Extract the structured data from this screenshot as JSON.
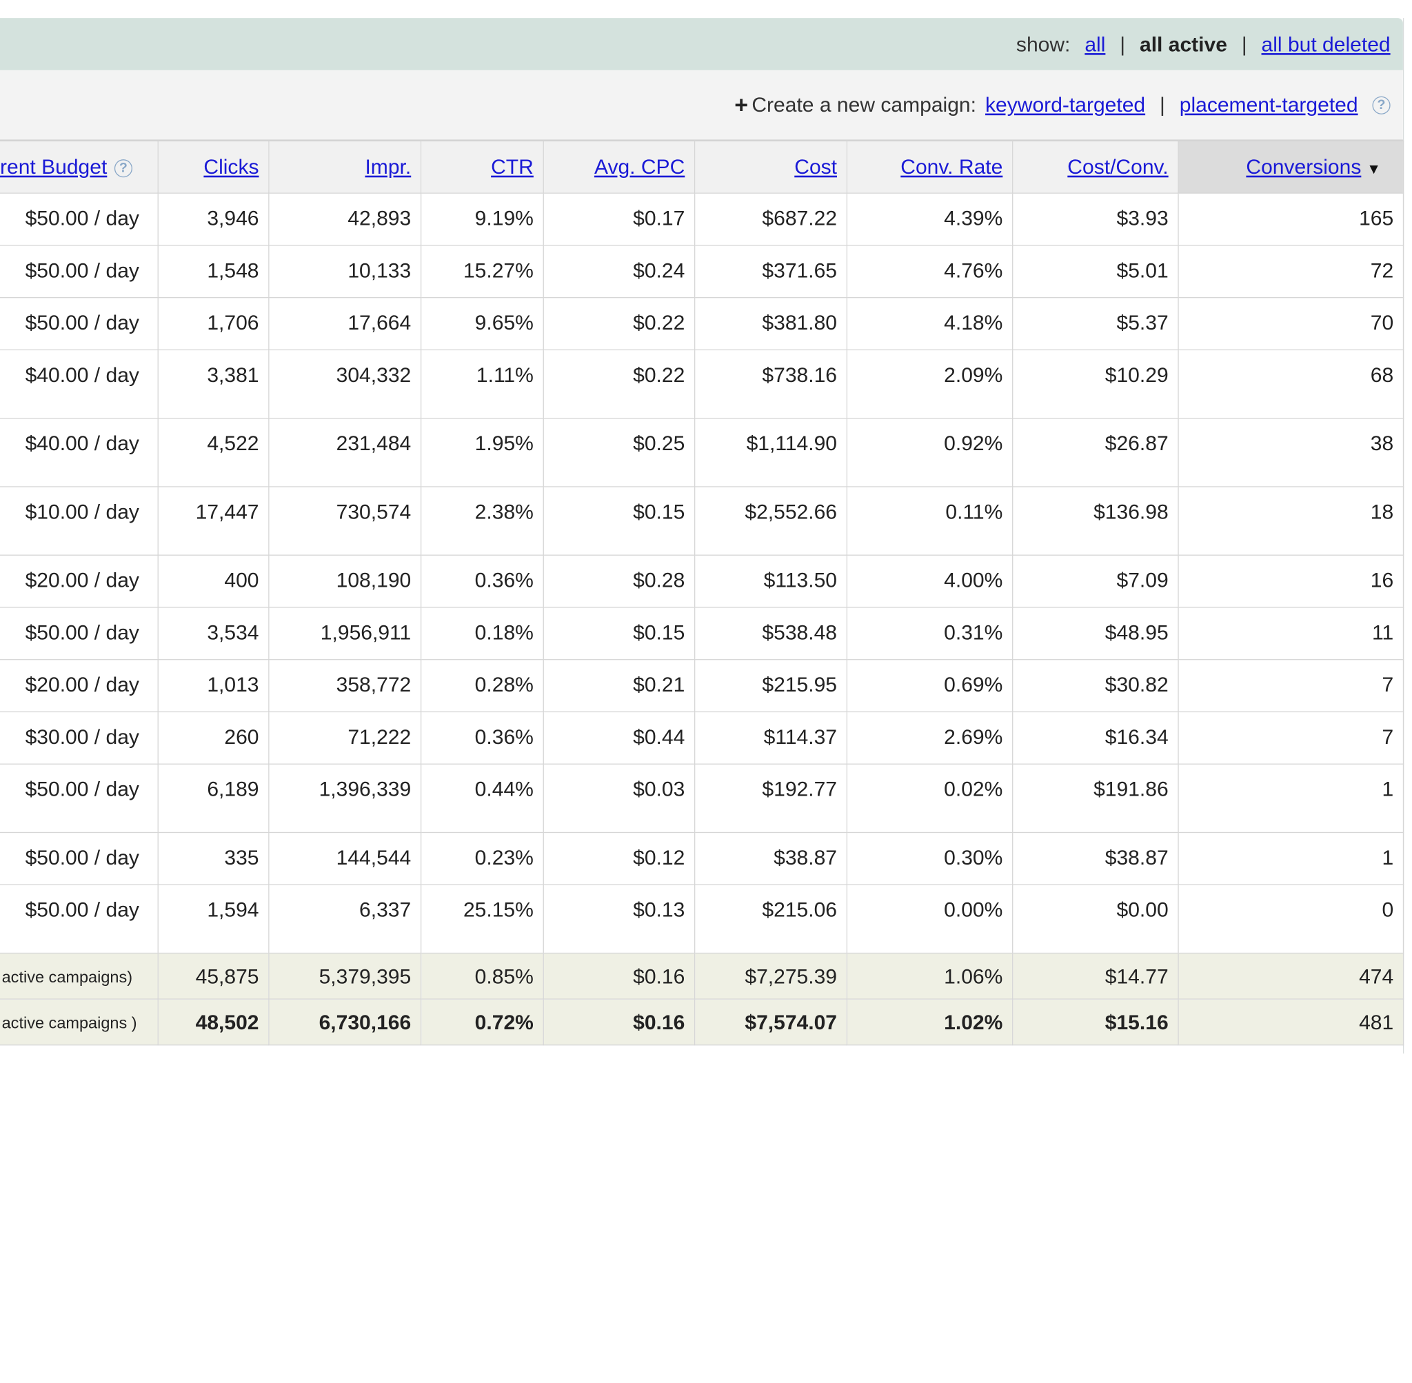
{
  "show_bar": {
    "label": "show:",
    "all": "all",
    "sep": "|",
    "all_active": "all active",
    "all_but_deleted": "all but deleted"
  },
  "create_bar": {
    "plus": "+",
    "label": "Create a new campaign:",
    "keyword": "keyword-targeted",
    "sep": "|",
    "placement": "placement-targeted",
    "help": "?"
  },
  "columns": {
    "budget": "rent Budget",
    "budget_help": "?",
    "clicks": "Clicks",
    "impr": "Impr.",
    "ctr": "CTR",
    "avg_cpc": "Avg. CPC",
    "cost": "Cost",
    "conv_rate": "Conv. Rate",
    "cost_conv": "Cost/Conv.",
    "conversions": "Conversions",
    "sort_arrow": "▼"
  },
  "rows": [
    {
      "budget": "$50.00 / day",
      "clicks": "3,946",
      "impr": "42,893",
      "ctr": "9.19%",
      "cpc": "$0.17",
      "cost": "$687.22",
      "conv_rate": "4.39%",
      "cost_conv": "$3.93",
      "conversions": "165"
    },
    {
      "budget": "$50.00 / day",
      "clicks": "1,548",
      "impr": "10,133",
      "ctr": "15.27%",
      "cpc": "$0.24",
      "cost": "$371.65",
      "conv_rate": "4.76%",
      "cost_conv": "$5.01",
      "conversions": "72"
    },
    {
      "budget": "$50.00 / day",
      "clicks": "1,706",
      "impr": "17,664",
      "ctr": "9.65%",
      "cpc": "$0.22",
      "cost": "$381.80",
      "conv_rate": "4.18%",
      "cost_conv": "$5.37",
      "conversions": "70"
    },
    {
      "budget": "$40.00 / day",
      "clicks": "3,381",
      "impr": "304,332",
      "ctr": "1.11%",
      "cpc": "$0.22",
      "cost": "$738.16",
      "conv_rate": "2.09%",
      "cost_conv": "$10.29",
      "conversions": "68"
    },
    {
      "budget": "$40.00 / day",
      "clicks": "4,522",
      "impr": "231,484",
      "ctr": "1.95%",
      "cpc": "$0.25",
      "cost": "$1,114.90",
      "conv_rate": "0.92%",
      "cost_conv": "$26.87",
      "conversions": "38"
    },
    {
      "budget": "$10.00 / day",
      "clicks": "17,447",
      "impr": "730,574",
      "ctr": "2.38%",
      "cpc": "$0.15",
      "cost": "$2,552.66",
      "conv_rate": "0.11%",
      "cost_conv": "$136.98",
      "conversions": "18"
    },
    {
      "budget": "$20.00 / day",
      "clicks": "400",
      "impr": "108,190",
      "ctr": "0.36%",
      "cpc": "$0.28",
      "cost": "$113.50",
      "conv_rate": "4.00%",
      "cost_conv": "$7.09",
      "conversions": "16"
    },
    {
      "budget": "$50.00 / day",
      "clicks": "3,534",
      "impr": "1,956,911",
      "ctr": "0.18%",
      "cpc": "$0.15",
      "cost": "$538.48",
      "conv_rate": "0.31%",
      "cost_conv": "$48.95",
      "conversions": "11"
    },
    {
      "budget": "$20.00 / day",
      "clicks": "1,013",
      "impr": "358,772",
      "ctr": "0.28%",
      "cpc": "$0.21",
      "cost": "$215.95",
      "conv_rate": "0.69%",
      "cost_conv": "$30.82",
      "conversions": "7"
    },
    {
      "budget": "$30.00 / day",
      "clicks": "260",
      "impr": "71,222",
      "ctr": "0.36%",
      "cpc": "$0.44",
      "cost": "$114.37",
      "conv_rate": "2.69%",
      "cost_conv": "$16.34",
      "conversions": "7"
    },
    {
      "budget": "$50.00 / day",
      "clicks": "6,189",
      "impr": "1,396,339",
      "ctr": "0.44%",
      "cpc": "$0.03",
      "cost": "$192.77",
      "conv_rate": "0.02%",
      "cost_conv": "$191.86",
      "conversions": "1"
    },
    {
      "budget": "$50.00 / day",
      "clicks": "335",
      "impr": "144,544",
      "ctr": "0.23%",
      "cpc": "$0.12",
      "cost": "$38.87",
      "conv_rate": "0.30%",
      "cost_conv": "$38.87",
      "conversions": "1"
    },
    {
      "budget": "$50.00 / day",
      "clicks": "1,594",
      "impr": "6,337",
      "ctr": "25.15%",
      "cpc": "$0.13",
      "cost": "$215.06",
      "conv_rate": "0.00%",
      "cost_conv": "$0.00",
      "conversions": "0"
    }
  ],
  "summary": [
    {
      "label": "active campaigns)",
      "clicks": "45,875",
      "impr": "5,379,395",
      "ctr": "0.85%",
      "cpc": "$0.16",
      "cost": "$7,275.39",
      "conv_rate": "1.06%",
      "cost_conv": "$14.77",
      "conversions": "474"
    },
    {
      "label": "active campaigns )",
      "clicks": "48,502",
      "impr": "6,730,166",
      "ctr": "0.72%",
      "cpc": "$0.16",
      "cost": "$7,574.07",
      "conv_rate": "1.02%",
      "cost_conv": "$15.16",
      "conversions": "481"
    }
  ]
}
